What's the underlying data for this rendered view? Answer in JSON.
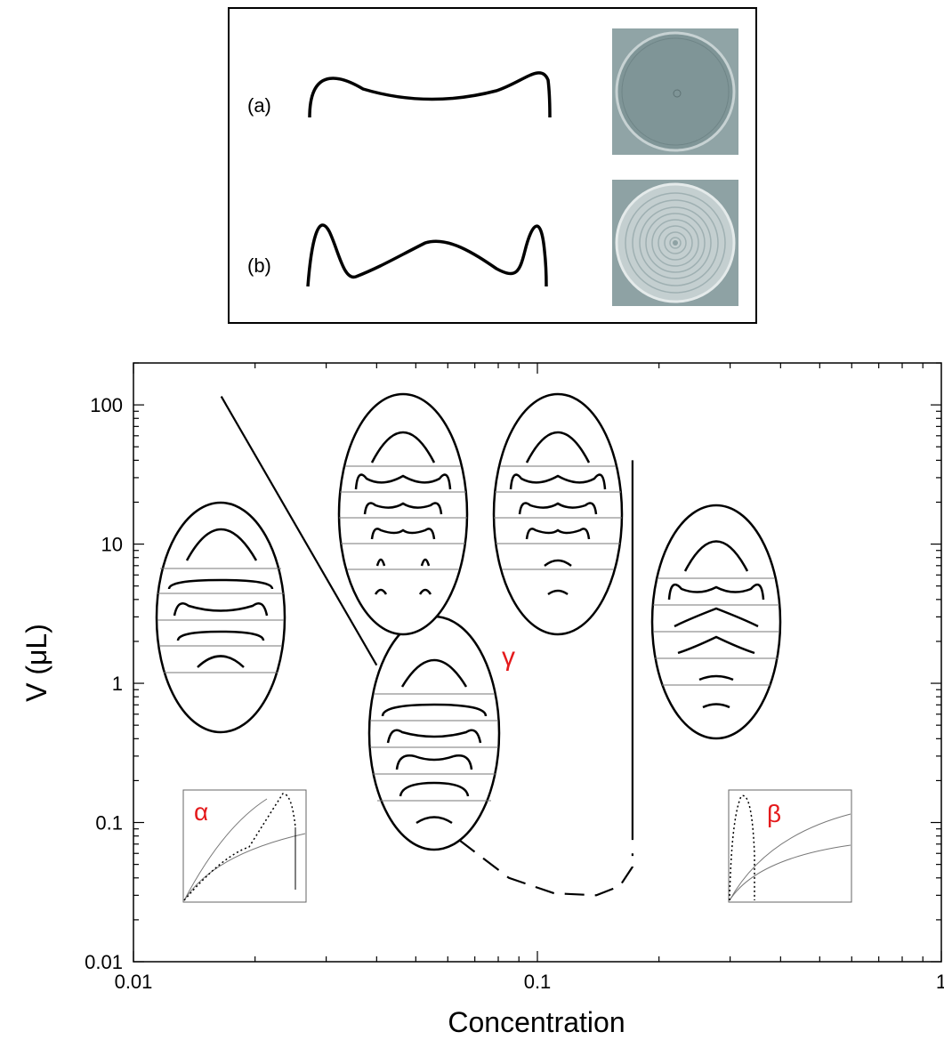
{
  "inset": {
    "rows": [
      {
        "label": "(a)",
        "profile": "single-ring",
        "photo": "uniform-disc"
      },
      {
        "label": "(b)",
        "profile": "multi-ring",
        "photo": "concentric-rings"
      }
    ]
  },
  "chart_data": {
    "type": "line",
    "xlabel": "Concentration",
    "ylabel": "V (μL)",
    "x_scale": "log",
    "y_scale": "log",
    "xlim": [
      0.01,
      1
    ],
    "ylim": [
      0.01,
      200
    ],
    "x_ticks": [
      {
        "value": 0.01,
        "label": "0.01"
      },
      {
        "value": 0.1,
        "label": "0.1"
      },
      {
        "value": 1,
        "label": "1"
      }
    ],
    "y_ticks": [
      {
        "value": 0.01,
        "label": "0.01"
      },
      {
        "value": 0.1,
        "label": "0.1"
      },
      {
        "value": 1,
        "label": "1"
      },
      {
        "value": 10,
        "label": "10"
      },
      {
        "value": 100,
        "label": "100"
      }
    ],
    "series": [
      {
        "style": "solid",
        "points": [
          [
            0.0165,
            115
          ],
          [
            0.04,
            1.35
          ]
        ]
      },
      {
        "style": "dashed",
        "points": [
          [
            0.064,
            0.075
          ],
          [
            0.085,
            0.04
          ],
          [
            0.11,
            0.031
          ],
          [
            0.14,
            0.03
          ],
          [
            0.16,
            0.035
          ],
          [
            0.172,
            0.048
          ],
          [
            0.172,
            0.06
          ]
        ]
      },
      {
        "style": "solid",
        "points": [
          [
            0.172,
            0.075
          ],
          [
            0.172,
            40
          ]
        ]
      }
    ],
    "annotations": [
      {
        "text": "α",
        "color": "#e41a1c"
      },
      {
        "text": "β",
        "color": "#e41a1c"
      },
      {
        "text": "γ",
        "color": "#e41a1c"
      }
    ],
    "colors": {
      "labels": "#e41a1c",
      "lines": "#000000"
    }
  }
}
